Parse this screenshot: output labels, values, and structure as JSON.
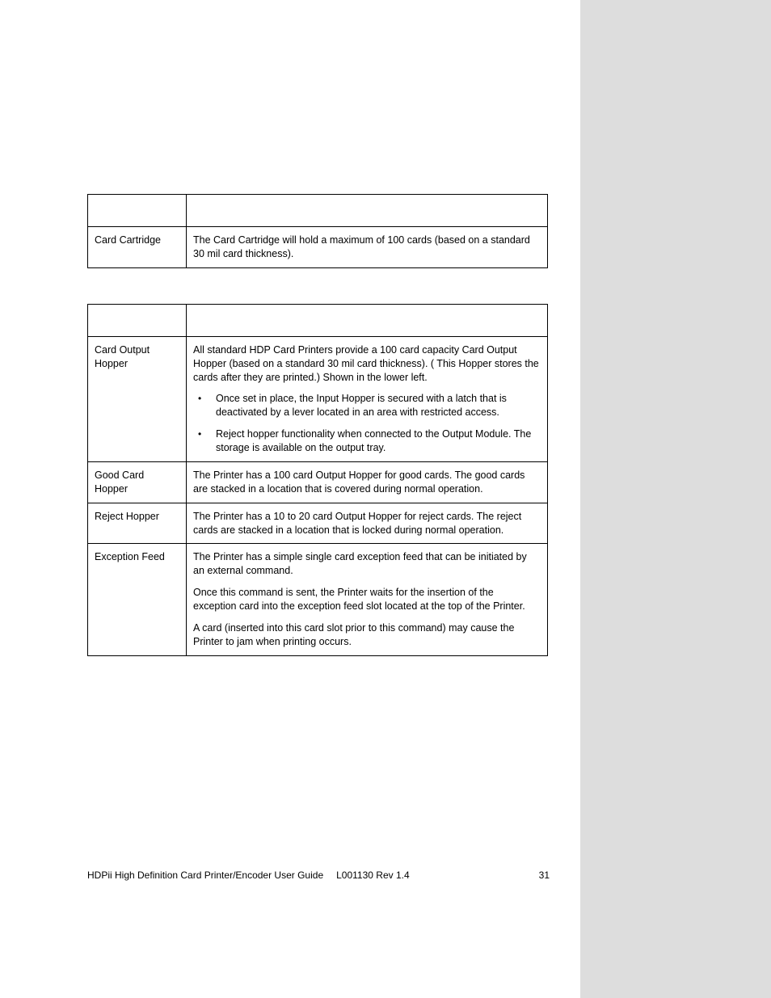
{
  "table1": {
    "rows": [
      {
        "label": "Card Cartridge",
        "text": "The Card Cartridge will hold a maximum of 100 cards (based on a standard 30 mil card thickness)."
      }
    ]
  },
  "table2": {
    "rows": [
      {
        "label": "Card Output Hopper",
        "para1": "All standard HDP Card Printers provide a 100 card capacity Card Output Hopper (based on a standard 30 mil card thickness). ( This Hopper stores the cards after they are printed.)  Shown in the lower left.",
        "bullets": [
          "Once set in place, the Input Hopper is secured with a latch that is deactivated by a lever located in an area with restricted access.",
          "Reject hopper functionality when connected to the Output Module. The storage is available on the output tray."
        ]
      },
      {
        "label": "Good Card Hopper",
        "para1": "The Printer has a 100 card Output Hopper for good cards.  The good cards are stacked in a location that is covered during normal operation."
      },
      {
        "label": "Reject Hopper",
        "para1": "The Printer has a 10 to 20 card Output Hopper for reject cards.  The reject cards are stacked in a location that is locked during normal operation."
      },
      {
        "label": "Exception Feed",
        "para1": "The Printer has a simple single card exception feed that can be initiated by an external command.",
        "para2": "Once this command is sent, the Printer waits for the insertion of the exception card into the exception feed slot located at the top of the Printer.",
        "para3": "A card (inserted into this card slot prior to this command) may cause the Printer to jam when printing occurs."
      }
    ]
  },
  "footer": {
    "title": "HDPii High Definition Card Printer/Encoder User Guide",
    "rev": "L001130 Rev 1.4",
    "page": "31"
  }
}
